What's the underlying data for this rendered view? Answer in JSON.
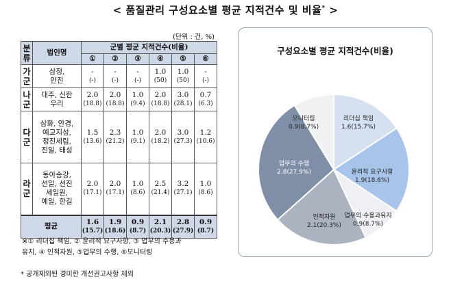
{
  "title": "< 품질관리 구성요소별 평균 지적건수 및 비율",
  "title_mark": "*",
  "title_close": " >",
  "unit": "(단위 : 건, %)",
  "table": {
    "h_group": "분류",
    "h_name": "법인명",
    "h_span": "군별 평균 지적건수(비율)",
    "cols": [
      "①",
      "②",
      "③",
      "④",
      "⑤",
      "⑥"
    ],
    "groups": [
      {
        "label": "가군",
        "names": [
          "삼정,",
          "안진"
        ],
        "vals": [
          "-",
          "-",
          "-",
          "1.0",
          "1.0",
          "-"
        ],
        "pcts": [
          "(-)",
          "(-)",
          "(-)",
          "(50)",
          "(50)",
          "(-)"
        ]
      },
      {
        "label": "나군",
        "names": [
          "대주, 신한",
          "우리"
        ],
        "vals": [
          "2.0",
          "2.0",
          "1.0",
          "2.0",
          "3.0",
          "0.7"
        ],
        "pcts": [
          "(18.8)",
          "(18.8)",
          "(9.4)",
          "(18.8)",
          "(28.1)",
          "(6.3)"
        ]
      },
      {
        "label": "다군",
        "names": [
          "삼화, 안경,",
          "예교지성,",
          "정진세림,",
          "진일, 태성"
        ],
        "vals": [
          "1.5",
          "2.3",
          "1.0",
          "2.0",
          "3.0",
          "1.2"
        ],
        "pcts": [
          "(13.6)",
          "(21.2)",
          "(9.1)",
          "(18.2)",
          "(27.3)",
          "(10.6)"
        ]
      },
      {
        "label": "라군",
        "names": [
          "동아송강,",
          "선일, 선진",
          "세일원,",
          "예일, 한길"
        ],
        "vals": [
          "2.0",
          "2.0",
          "1.0",
          "2.5",
          "3.2",
          "1.0"
        ],
        "pcts": [
          "(17.1)",
          "(17.1)",
          "(8.6)",
          "(21.4)",
          "(27.1)",
          "(8.6)"
        ]
      }
    ],
    "avg_label": "평균",
    "avg_vals": [
      "1.6",
      "1.9",
      "0.9",
      "2.1",
      "2.8",
      "0.9"
    ],
    "avg_pcts": [
      "(15.7)",
      "(18.6)",
      "(8.7)",
      "(20.3)",
      "(27.9)",
      "(8.7)"
    ]
  },
  "note_line1": "※① 리더십 책임, ② 윤리적 요구사항, ③ 업무의 수용과",
  "note_line2": "유지, ④ 인적자원, ⑤업무의 수행, ⑥모니터링",
  "footnote": "* 공개제외된 경미한 개선권고사항 제외",
  "chart_data": {
    "type": "pie",
    "title": "구성요소별 평균 지적건수(비율)",
    "slices": [
      {
        "name": "리더십 책임",
        "value": 1.6,
        "pct": 15.7,
        "label": "1.6(15.7%)",
        "color": "#d5e0f1"
      },
      {
        "name": "윤리적 요구사항",
        "value": 1.9,
        "pct": 18.6,
        "label": "1.9(18.6%)",
        "color": "#a9c4ea"
      },
      {
        "name": "업무의 수용과유지",
        "value": 0.9,
        "pct": 8.7,
        "label": "0.9(8.7%)",
        "color": "#eef0f4"
      },
      {
        "name": "인적자원",
        "value": 2.1,
        "pct": 20.3,
        "label": "2.1(20.3%)",
        "color": "#aab3bf"
      },
      {
        "name": "업무의 수행",
        "value": 2.8,
        "pct": 27.9,
        "label": "2.8(27.9%)",
        "color": "#7f8fa8"
      },
      {
        "name": "모니터링",
        "value": 0.9,
        "pct": 8.7,
        "label": "0.9(8.7%)",
        "color": "#f0f1f3"
      }
    ]
  }
}
